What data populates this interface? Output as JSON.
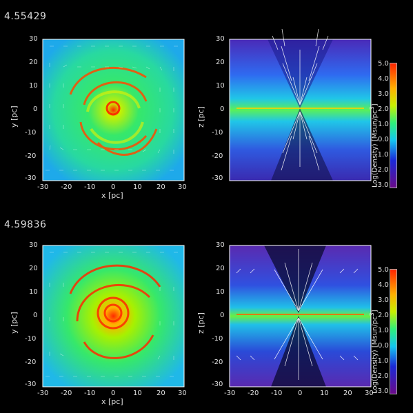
{
  "rows": [
    {
      "time": "4.55429"
    },
    {
      "time": "4.59836"
    }
  ],
  "axes": {
    "x_label": "x [pc]",
    "y_label": "y [pc]",
    "z_label": "z [pc]",
    "ticks": [
      "-30",
      "-20",
      "-10",
      "0",
      "10",
      "20",
      "30"
    ]
  },
  "colorbar": {
    "label": "Log(Density) [Msun/pc",
    "label_sup": "3",
    "label_end": "]",
    "ticks": [
      "5.0",
      "4.0",
      "3.0",
      "2.0",
      "1.0",
      "0.0",
      "-1.0",
      "-2.0",
      "-3.0"
    ]
  },
  "colors": {
    "background": "#000000",
    "text": "#e0e0e0"
  }
}
